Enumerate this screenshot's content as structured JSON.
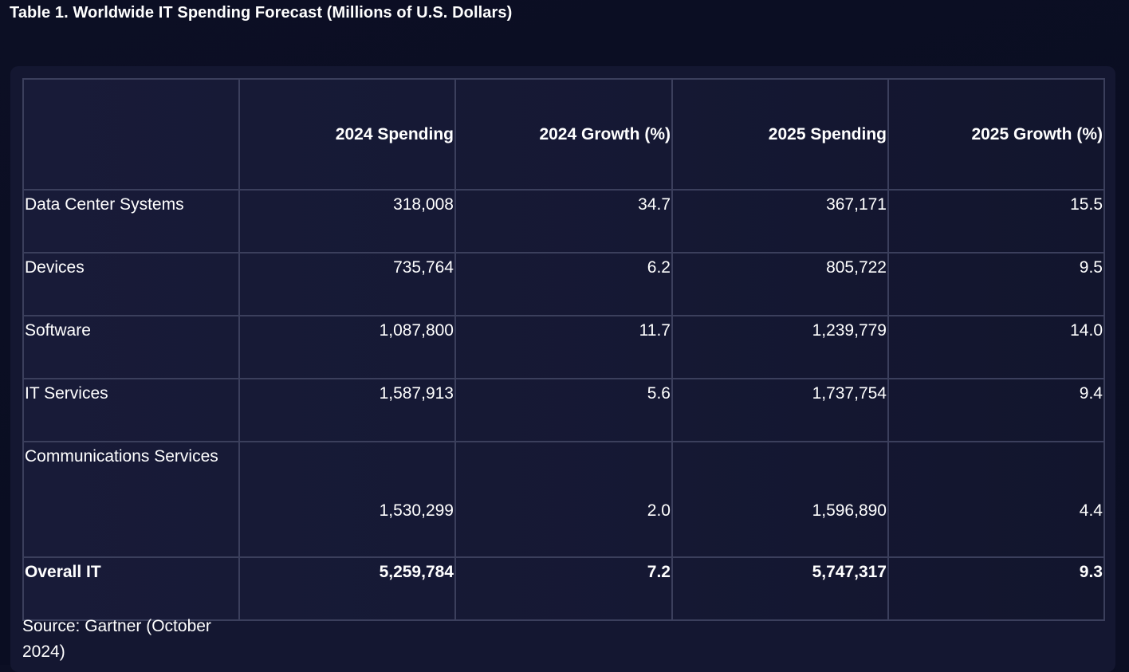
{
  "page": {
    "title": "Table 1. Worldwide IT Spending Forecast (Millions of U.S. Dollars)",
    "source": "Source: Gartner (October 2024)"
  },
  "table": {
    "columns": [
      "",
      "2024 Spending",
      "2024 Growth (%)",
      "2025 Spending",
      "2025 Growth (%)"
    ],
    "rows": [
      {
        "label": "Data Center Systems",
        "spend_2024": "318,008",
        "growth_2024": "34.7",
        "spend_2025": "367,171",
        "growth_2025": "15.5"
      },
      {
        "label": "Devices",
        "spend_2024": "735,764",
        "growth_2024": "6.2",
        "spend_2025": "805,722",
        "growth_2025": "9.5"
      },
      {
        "label": "Software",
        "spend_2024": "1,087,800",
        "growth_2024": "11.7",
        "spend_2025": "1,239,779",
        "growth_2025": "14.0"
      },
      {
        "label": "IT Services",
        "spend_2024": "1,587,913",
        "growth_2024": "5.6",
        "spend_2025": "1,737,754",
        "growth_2025": "9.4"
      },
      {
        "label": "Communications Services",
        "spend_2024": "1,530,299",
        "growth_2024": "2.0",
        "spend_2025": "1,596,890",
        "growth_2025": "4.4"
      }
    ],
    "total": {
      "label": "Overall IT",
      "spend_2024": "5,259,784",
      "growth_2024": "7.2",
      "spend_2025": "5,747,317",
      "growth_2025": "9.3"
    }
  },
  "colors": {
    "background": "#0b0e23",
    "card": "#141731",
    "grid": "#3b3f5c",
    "text": "#ffffff"
  }
}
